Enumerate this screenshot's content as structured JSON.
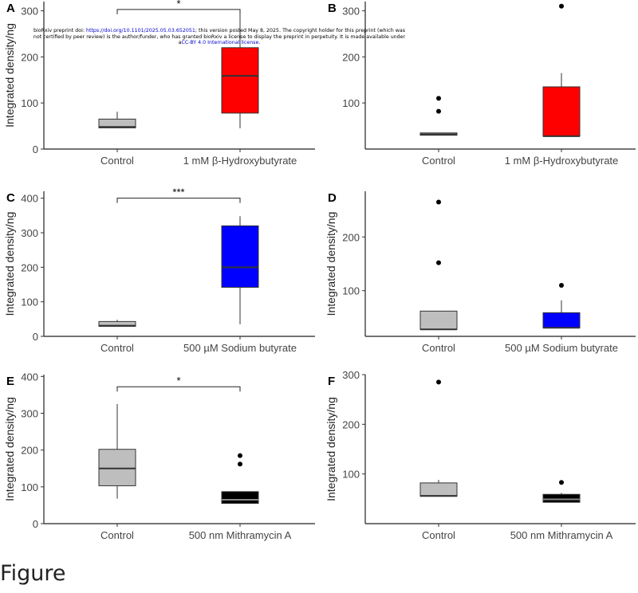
{
  "preprint": {
    "prefix": "bioRxiv preprint doi: ",
    "doi": "https://doi.org/10.1101/2025.05.03.652051",
    "middle": "; this version posted May 8, 2025. The copyright holder for this preprint (which was not certified by peer review) is the author/funder, who has granted bioRxiv a license to display the preprint in perpetuity. It is made available under a",
    "license": "CC-BY 4.0 International license",
    "suffix": "."
  },
  "caption": "Figure",
  "colors": {
    "gray": "#bebebe",
    "red": "#ff0000",
    "blue": "#0000ff",
    "black": "#000000"
  },
  "chart_data": [
    {
      "panel": "A",
      "type": "box",
      "ylabel": "Integrated density/ng",
      "ylim": [
        0,
        320
      ],
      "yticks": [
        0,
        100,
        200,
        300
      ],
      "categories": [
        "Control",
        "1 mM β-Hydroxybutyrate"
      ],
      "fills": [
        "gray",
        "red"
      ],
      "boxes": [
        {
          "q1": 46,
          "median": 48,
          "q3": 65,
          "whisker_low": 46,
          "whisker_high": 81,
          "outliers": []
        },
        {
          "q1": 78,
          "median": 159,
          "q3": 220,
          "whisker_low": 45,
          "whisker_high": 300,
          "outliers": []
        }
      ],
      "significance": {
        "label": "*",
        "height": 303
      }
    },
    {
      "panel": "B",
      "type": "box",
      "ylabel": "",
      "ylim": [
        0,
        320
      ],
      "yticks": [
        100,
        200,
        300
      ],
      "categories": [
        "Control",
        "1 mM β-Hydroxybutyrate"
      ],
      "fills": [
        "gray",
        "red"
      ],
      "boxes": [
        {
          "q1": 30,
          "median": 32,
          "q3": 35,
          "whisker_low": 30,
          "whisker_high": 35,
          "outliers": [
            82,
            110
          ]
        },
        {
          "q1": 28,
          "median": 28,
          "q3": 135,
          "whisker_low": 28,
          "whisker_high": 165,
          "outliers": [
            310
          ]
        }
      ],
      "significance": null
    },
    {
      "panel": "C",
      "type": "box",
      "ylabel": "Integrated density/ng",
      "ylim": [
        0,
        420
      ],
      "yticks": [
        0,
        100,
        200,
        300,
        400
      ],
      "categories": [
        "Control",
        "500 µM Sodium butyrate"
      ],
      "fills": [
        "gray",
        "blue"
      ],
      "boxes": [
        {
          "q1": 29,
          "median": 31,
          "q3": 43,
          "whisker_low": 29,
          "whisker_high": 48,
          "outliers": []
        },
        {
          "q1": 142,
          "median": 200,
          "q3": 320,
          "whisker_low": 35,
          "whisker_high": 348,
          "outliers": []
        }
      ],
      "significance": {
        "label": "***",
        "height": 400
      }
    },
    {
      "panel": "D",
      "type": "box",
      "ylabel": "Integrated density/ng",
      "ylim": [
        15,
        285
      ],
      "yticks": [
        100,
        200
      ],
      "categories": [
        "Control",
        "500 µM Sodium butyrate"
      ],
      "fills": [
        "gray",
        "blue"
      ],
      "boxes": [
        {
          "q1": 28,
          "median": 28,
          "q3": 62,
          "whisker_low": 28,
          "whisker_high": 62,
          "outliers": [
            152,
            265
          ]
        },
        {
          "q1": 31,
          "median": 31,
          "q3": 59,
          "whisker_low": 31,
          "whisker_high": 82,
          "outliers": [
            110
          ]
        }
      ],
      "significance": null
    },
    {
      "panel": "E",
      "type": "box",
      "ylabel": "Integrated density/ng",
      "ylim": [
        0,
        405
      ],
      "yticks": [
        0,
        100,
        200,
        300,
        400
      ],
      "categories": [
        "Control",
        "500 nm Mithramycin A"
      ],
      "fills": [
        "gray",
        "black"
      ],
      "boxes": [
        {
          "q1": 103,
          "median": 150,
          "q3": 202,
          "whisker_low": 68,
          "whisker_high": 325,
          "outliers": []
        },
        {
          "q1": 55,
          "median": 65,
          "q3": 87,
          "whisker_low": 55,
          "whisker_high": 87,
          "outliers": [
            162,
            185
          ]
        }
      ],
      "significance": {
        "label": "*",
        "height": 372
      }
    },
    {
      "panel": "F",
      "type": "box",
      "ylabel": "Integrated density/ng",
      "ylim": [
        0,
        300
      ],
      "yticks": [
        100,
        200,
        300
      ],
      "categories": [
        "Control",
        "500 nm Mithramycin A"
      ],
      "fills": [
        "gray",
        "black"
      ],
      "boxes": [
        {
          "q1": 55,
          "median": 56,
          "q3": 82,
          "whisker_low": 55,
          "whisker_high": 88,
          "outliers": [
            285
          ]
        },
        {
          "q1": 43,
          "median": 49,
          "q3": 59,
          "whisker_low": 43,
          "whisker_high": 62,
          "outliers": [
            83
          ]
        }
      ],
      "significance": null
    }
  ]
}
